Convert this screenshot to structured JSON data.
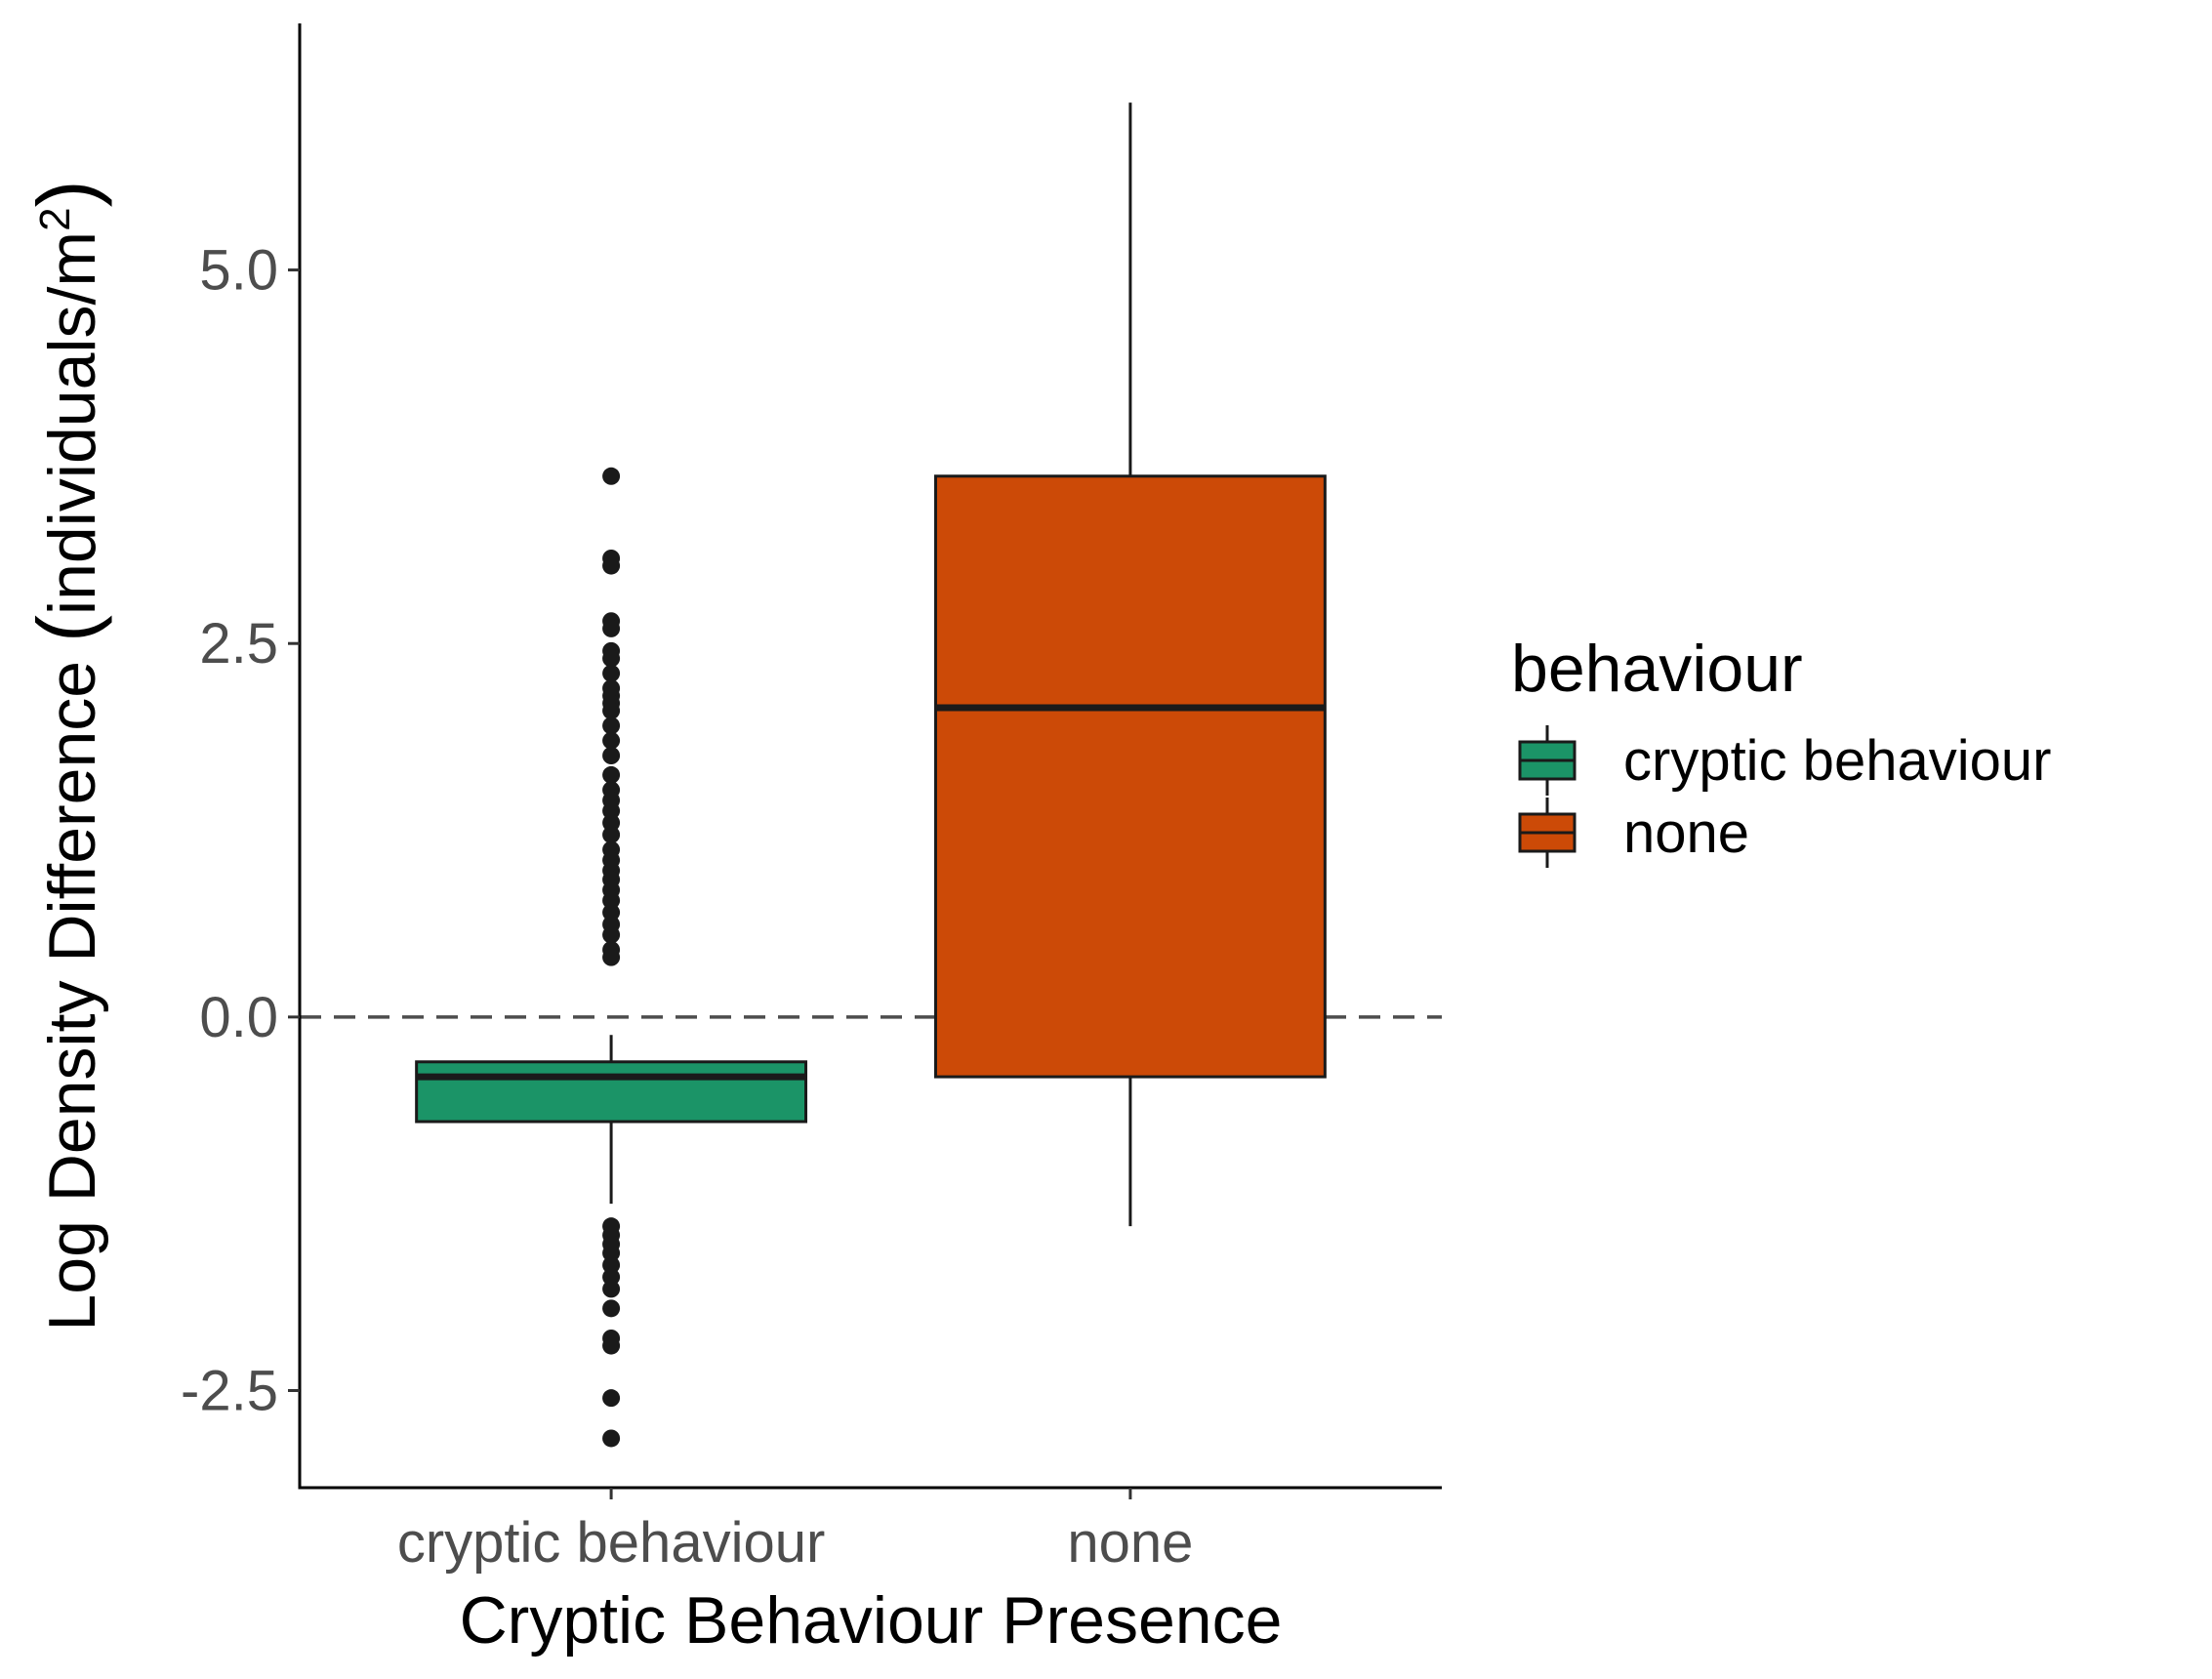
{
  "chart_data": {
    "type": "box",
    "xlabel": "Cryptic Behaviour Presence",
    "ylabel_main": "Log Density Difference ",
    "ylabel_unit": "individuals",
    "ylabel_unit_denominator": "m",
    "ylabel_unit_exponent": "2",
    "ylim": [
      -3.15,
      6.65
    ],
    "yticks": [
      -2.5,
      0.0,
      2.5,
      5.0
    ],
    "ytick_labels": [
      "-2.5",
      "0.0",
      "2.5",
      "5.0"
    ],
    "categories": [
      "cryptic behaviour",
      "none"
    ],
    "reference_line": {
      "y": 0.0,
      "style": "dashed",
      "color": "#4d4d4d"
    },
    "boxes": [
      {
        "category": "cryptic behaviour",
        "color": "#1b9467",
        "whisker_low": -1.25,
        "q1": -0.7,
        "median": -0.4,
        "q3": -0.3,
        "whisker_high": -0.12,
        "outliers": [
          3.62,
          3.07,
          3.02,
          2.65,
          2.6,
          2.45,
          2.4,
          2.3,
          2.2,
          2.15,
          2.1,
          2.05,
          1.95,
          1.85,
          1.75,
          1.62,
          1.52,
          1.45,
          1.38,
          1.3,
          1.22,
          1.12,
          1.05,
          0.98,
          0.92,
          0.85,
          0.78,
          0.7,
          0.62,
          0.55,
          0.45,
          0.4,
          -1.4,
          -1.46,
          -1.52,
          -1.58,
          -1.66,
          -1.74,
          -1.82,
          -1.95,
          -2.15,
          -2.2,
          -2.55,
          -2.82
        ]
      },
      {
        "category": "none",
        "color": "#cc4a07",
        "whisker_low": -1.4,
        "q1": -0.4,
        "median": 2.07,
        "q3": 3.62,
        "whisker_high": 6.12,
        "outliers": []
      }
    ],
    "legend": {
      "title": "behaviour",
      "position": "right",
      "items": [
        {
          "label": "cryptic behaviour",
          "color": "#1b9467"
        },
        {
          "label": "none",
          "color": "#cc4a07"
        }
      ]
    },
    "grid": false
  }
}
